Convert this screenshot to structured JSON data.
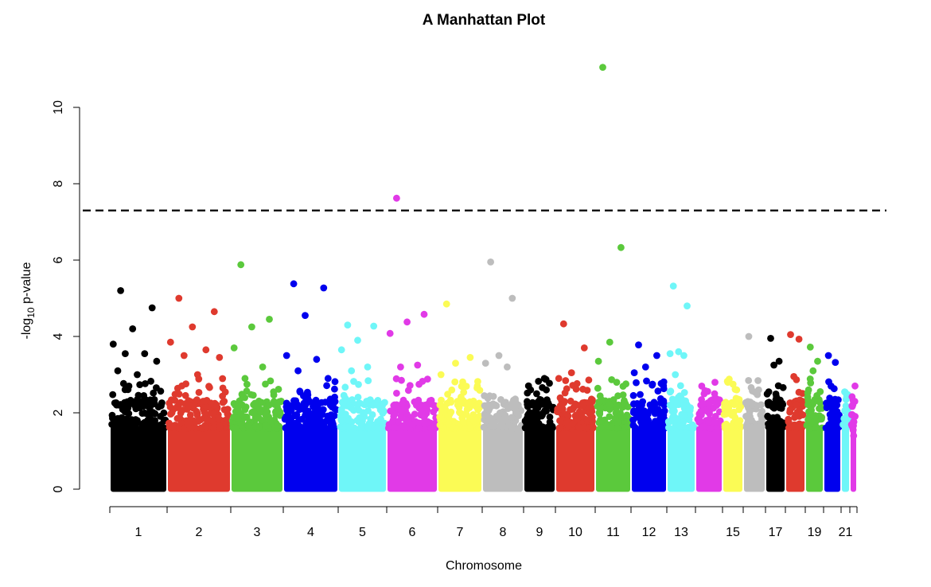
{
  "chart_data": {
    "type": "scatter",
    "title": "A Manhattan Plot",
    "xlabel": "Chromosome",
    "ylabel_main": "-log",
    "ylabel_sub": "10",
    "ylabel_tail": " p-value",
    "ylim": [
      0,
      11
    ],
    "y_ticks": [
      0,
      2,
      4,
      6,
      8,
      10
    ],
    "x_tick_labels": [
      "1",
      "2",
      "3",
      "4",
      "5",
      "6",
      "7",
      "8",
      "9",
      "10",
      "11",
      "12",
      "13",
      "15",
      "17",
      "19",
      "21"
    ],
    "significance_threshold": 7.3,
    "grid": false,
    "colors": [
      "#000000",
      "#df3a2e",
      "#5bc93c",
      "#0000ee",
      "#6ff6f8",
      "#e13ae7",
      "#fbfb55",
      "#bdbdbd"
    ],
    "chromosomes": [
      {
        "chr": 1,
        "label": "1",
        "top_points": [
          5.2,
          4.75,
          4.2,
          3.8,
          3.55,
          3.55,
          3.35,
          3.0,
          3.1
        ]
      },
      {
        "chr": 2,
        "label": "2",
        "top_points": [
          5.0,
          4.65,
          4.25,
          3.85,
          3.65,
          3.5,
          3.45,
          3.0
        ]
      },
      {
        "chr": 3,
        "label": "3",
        "top_points": [
          5.88,
          4.45,
          4.25,
          3.7,
          3.2,
          2.9,
          2.55
        ]
      },
      {
        "chr": 4,
        "label": "4",
        "top_points": [
          5.38,
          5.27,
          4.55,
          3.5,
          3.4,
          3.1,
          2.9
        ]
      },
      {
        "chr": 5,
        "label": "5",
        "top_points": [
          4.3,
          4.27,
          3.9,
          3.65,
          3.2,
          3.1
        ]
      },
      {
        "chr": 6,
        "label": "6",
        "top_points": [
          7.62,
          4.58,
          4.38,
          4.08,
          3.25,
          3.2
        ]
      },
      {
        "chr": 7,
        "label": "7",
        "top_points": [
          4.85,
          3.45,
          3.3,
          3.0
        ]
      },
      {
        "chr": 8,
        "label": "8",
        "top_points": [
          5.95,
          5.0,
          3.5,
          3.3,
          3.2
        ]
      },
      {
        "chr": 9,
        "label": "9",
        "top_points": [
          2.6,
          2.6,
          2.5
        ]
      },
      {
        "chr": 10,
        "label": "10",
        "top_points": [
          4.33,
          3.7,
          3.05,
          2.9
        ]
      },
      {
        "chr": 11,
        "label": "11",
        "top_points": [
          11.05,
          6.33,
          3.85,
          3.35,
          2.8
        ]
      },
      {
        "chr": 12,
        "label": "12",
        "top_points": [
          3.78,
          3.5,
          3.2,
          3.05,
          2.75
        ]
      },
      {
        "chr": 13,
        "label": "13",
        "top_points": [
          5.32,
          4.8,
          3.6,
          3.55,
          3.5,
          3.0
        ]
      },
      {
        "chr": 14,
        "label": "",
        "top_points": [
          2.7,
          2.5
        ]
      },
      {
        "chr": 15,
        "label": "15",
        "top_points": [
          2.8,
          2.6
        ]
      },
      {
        "chr": 16,
        "label": "",
        "top_points": [
          4.0,
          2.6
        ]
      },
      {
        "chr": 17,
        "label": "17",
        "top_points": [
          3.95,
          3.35,
          3.25,
          2.55
        ]
      },
      {
        "chr": 18,
        "label": "",
        "top_points": [
          4.05,
          3.93,
          2.95
        ]
      },
      {
        "chr": 19,
        "label": "19",
        "top_points": [
          3.72,
          3.35,
          3.1,
          2.6
        ]
      },
      {
        "chr": 20,
        "label": "",
        "top_points": [
          3.5,
          3.32,
          2.7
        ]
      },
      {
        "chr": 21,
        "label": "21",
        "top_points": [
          2.55,
          2.35
        ]
      },
      {
        "chr": 22,
        "label": "",
        "top_points": [
          1.55,
          1.4
        ]
      }
    ]
  }
}
